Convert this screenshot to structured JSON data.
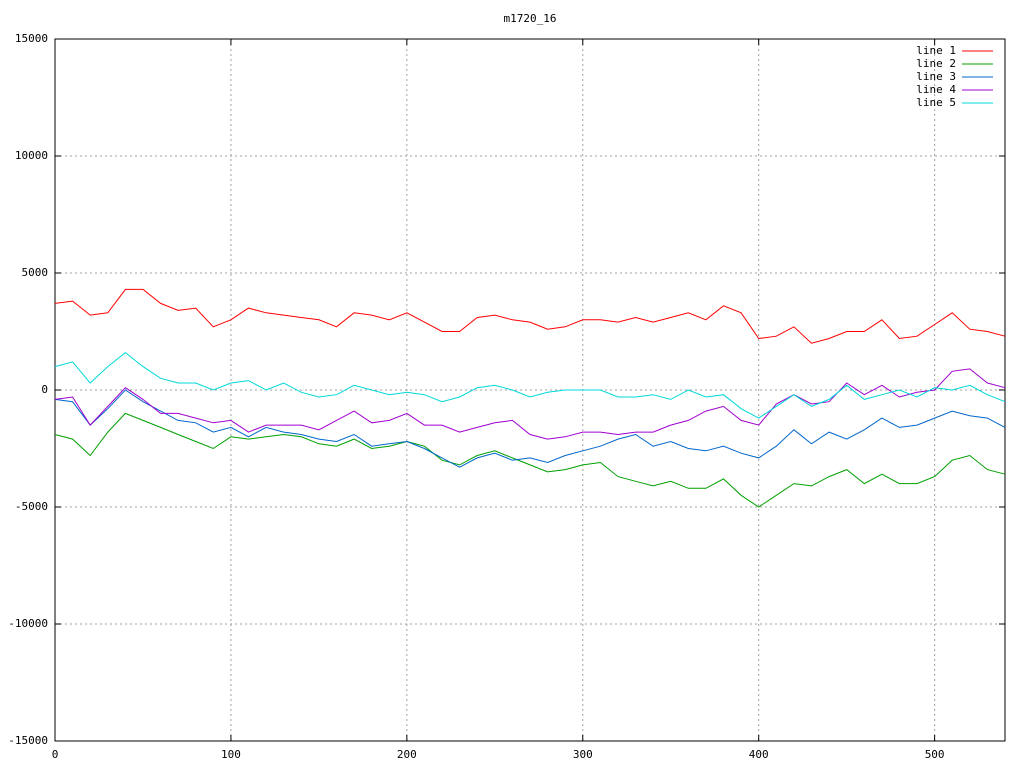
{
  "chart_data": {
    "type": "line",
    "title": "m1720_16",
    "x": [
      0,
      10,
      20,
      30,
      40,
      50,
      60,
      70,
      80,
      90,
      100,
      110,
      120,
      130,
      140,
      150,
      160,
      170,
      180,
      190,
      200,
      210,
      220,
      230,
      240,
      250,
      260,
      270,
      280,
      290,
      300,
      310,
      320,
      330,
      340,
      350,
      360,
      370,
      380,
      390,
      400,
      410,
      420,
      430,
      440,
      450,
      460,
      470,
      480,
      490,
      500,
      510,
      520,
      530,
      540
    ],
    "series": [
      {
        "name": "line 1",
        "color": "#ff0000",
        "values": [
          3700,
          3800,
          3200,
          3300,
          4300,
          4300,
          3700,
          3400,
          3500,
          2700,
          3000,
          3500,
          3300,
          3200,
          3100,
          3000,
          2700,
          3300,
          3200,
          3000,
          3300,
          2900,
          2500,
          2500,
          3100,
          3200,
          3000,
          2900,
          2600,
          2700,
          3000,
          3000,
          2900,
          3100,
          2900,
          3100,
          3300,
          3000,
          3600,
          3300,
          2200,
          2300,
          2700,
          2000,
          2200,
          2500,
          2500,
          3000,
          2200,
          2300,
          2800,
          3300,
          2600,
          2500,
          2300
        ]
      },
      {
        "name": "line 2",
        "color": "#00a000",
        "values": [
          -1900,
          -2100,
          -2800,
          -1800,
          -1000,
          -1300,
          -1600,
          -1900,
          -2200,
          -2500,
          -2000,
          -2100,
          -2000,
          -1900,
          -2000,
          -2300,
          -2400,
          -2100,
          -2500,
          -2400,
          -2200,
          -2400,
          -3000,
          -3200,
          -2800,
          -2600,
          -2900,
          -3200,
          -3500,
          -3400,
          -3200,
          -3100,
          -3700,
          -3900,
          -4100,
          -3900,
          -4200,
          -4200,
          -3800,
          -4500,
          -5000,
          -4500,
          -4000,
          -4100,
          -3700,
          -3400,
          -4000,
          -3600,
          -4000,
          -4000,
          -3700,
          -3000,
          -2800,
          -3400,
          -3600
        ]
      },
      {
        "name": "line 3",
        "color": "#0066cc",
        "values": [
          -400,
          -500,
          -1500,
          -800,
          0,
          -500,
          -900,
          -1300,
          -1400,
          -1800,
          -1600,
          -2000,
          -1600,
          -1800,
          -1900,
          -2100,
          -2200,
          -1900,
          -2400,
          -2300,
          -2200,
          -2500,
          -2900,
          -3300,
          -2900,
          -2700,
          -3000,
          -2900,
          -3100,
          -2800,
          -2600,
          -2400,
          -2100,
          -1900,
          -2400,
          -2200,
          -2500,
          -2600,
          -2400,
          -2700,
          -2900,
          -2400,
          -1700,
          -2300,
          -1800,
          -2100,
          -1700,
          -1200,
          -1600,
          -1500,
          -1200,
          -900,
          -1100,
          -1200,
          -1600
        ]
      },
      {
        "name": "line 4",
        "color": "#a000d0",
        "values": [
          -400,
          -300,
          -1500,
          -700,
          100,
          -400,
          -1000,
          -1000,
          -1200,
          -1400,
          -1300,
          -1800,
          -1500,
          -1500,
          -1500,
          -1700,
          -1300,
          -900,
          -1400,
          -1300,
          -1000,
          -1500,
          -1500,
          -1800,
          -1600,
          -1400,
          -1300,
          -1900,
          -2100,
          -2000,
          -1800,
          -1800,
          -1900,
          -1800,
          -1800,
          -1500,
          -1300,
          -900,
          -700,
          -1300,
          -1500,
          -600,
          -200,
          -600,
          -500,
          300,
          -200,
          200,
          -300,
          -100,
          0,
          800,
          900,
          300,
          100
        ]
      },
      {
        "name": "line 5",
        "color": "#00d8d8",
        "values": [
          1000,
          1200,
          300,
          1000,
          1600,
          1000,
          500,
          300,
          300,
          0,
          300,
          400,
          0,
          300,
          -100,
          -300,
          -200,
          200,
          0,
          -200,
          -100,
          -200,
          -500,
          -300,
          100,
          200,
          0,
          -300,
          -100,
          0,
          0,
          0,
          -300,
          -300,
          -200,
          -400,
          0,
          -300,
          -200,
          -800,
          -1200,
          -700,
          -200,
          -700,
          -400,
          200,
          -400,
          -200,
          0,
          -300,
          100,
          0,
          200,
          -200,
          -500
        ]
      }
    ],
    "xlim": [
      0,
      540
    ],
    "xticks": [
      0,
      100,
      200,
      300,
      400,
      500
    ],
    "ylim": [
      -15000,
      15000
    ],
    "yticks": [
      -15000,
      -10000,
      -5000,
      0,
      5000,
      10000,
      15000
    ],
    "grid": true,
    "legend": "upper right"
  }
}
